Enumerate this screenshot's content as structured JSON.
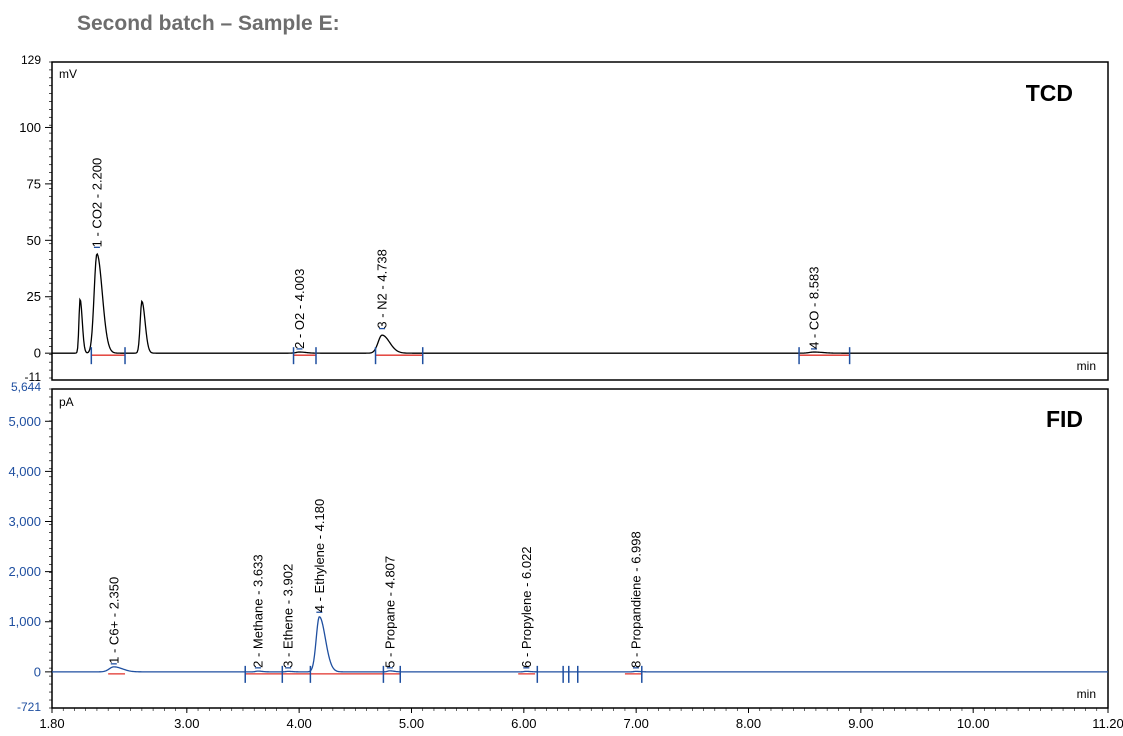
{
  "page": {
    "heading": "Second batch – Sample E:"
  },
  "colors": {
    "tcd_trace": "#000000",
    "fid_trace": "#1f4fa0",
    "baseline": "#e0302a",
    "marker": "#1f4fa0",
    "fid_axis_text": "#1f4fa0"
  },
  "chart_data": [
    {
      "type": "line",
      "detector": "TCD",
      "unit_label": "mV",
      "xlabel": "min",
      "xlim": [
        1.8,
        11.2
      ],
      "ylim": [
        -11,
        129
      ],
      "y_ticks": [
        0,
        25,
        50,
        75,
        100
      ],
      "y_tick_labels": [
        "0",
        "25",
        "50",
        "75",
        "100"
      ],
      "y_min_label": "-11",
      "y_max_label": "129",
      "grid": false,
      "peaks": [
        {
          "rt": 2.05,
          "height": 24,
          "width": 0.01
        },
        {
          "rt": 2.2,
          "height": 44,
          "width": 0.025
        },
        {
          "rt": 2.6,
          "height": 23,
          "width": 0.015
        },
        {
          "rt": 4.003,
          "height": 0.5,
          "width": 0.03
        },
        {
          "rt": 4.738,
          "height": 8,
          "width": 0.035
        },
        {
          "rt": 8.583,
          "height": 0.5,
          "width": 0.04
        }
      ],
      "annotations": [
        {
          "x": 2.2,
          "text": "1 - CO2 - 2.200",
          "y": 46
        },
        {
          "x": 4.003,
          "text": "2 - O2 - 4.003",
          "y": 1
        },
        {
          "x": 4.738,
          "text": "3 - N2 - 4.738",
          "y": 10
        },
        {
          "x": 8.583,
          "text": "4 - CO - 8.583",
          "y": 1
        }
      ],
      "baselines": [
        [
          2.15,
          2.45
        ],
        [
          3.95,
          4.15
        ],
        [
          4.68,
          5.1
        ],
        [
          8.45,
          8.9
        ]
      ],
      "markers": [
        2.15,
        2.45,
        3.95,
        4.15,
        4.68,
        5.1,
        8.45,
        8.9
      ]
    },
    {
      "type": "line",
      "detector": "FID",
      "unit_label": "pA",
      "xlabel": "min",
      "xlim": [
        1.8,
        11.2
      ],
      "ylim": [
        -721,
        5644
      ],
      "y_ticks": [
        0,
        1000,
        2000,
        3000,
        4000,
        5000
      ],
      "y_tick_labels": [
        "0",
        "1,000",
        "2,000",
        "3,000",
        "4,000",
        "5,000"
      ],
      "y_min_label": "-721",
      "y_max_label": "5,644",
      "x_ticks": [
        1.8,
        3.0,
        4.0,
        5.0,
        6.0,
        7.0,
        8.0,
        9.0,
        10.0,
        11.2
      ],
      "x_tick_labels": [
        "1.80",
        "3.00",
        "4.00",
        "5.00",
        "6.00",
        "7.00",
        "8.00",
        "9.00",
        "10.00",
        "11.20"
      ],
      "grid": false,
      "peaks": [
        {
          "rt": 2.35,
          "height": 100,
          "width": 0.04
        },
        {
          "rt": 3.633,
          "height": 15,
          "width": 0.02
        },
        {
          "rt": 3.902,
          "height": 10,
          "width": 0.02
        },
        {
          "rt": 4.18,
          "height": 1100,
          "width": 0.028
        },
        {
          "rt": 4.807,
          "height": 20,
          "width": 0.02
        },
        {
          "rt": 6.022,
          "height": 10,
          "width": 0.02
        },
        {
          "rt": 6.998,
          "height": 10,
          "width": 0.02
        }
      ],
      "annotations": [
        {
          "x": 2.35,
          "text": "1 - C6+ - 2.350",
          "y": 120
        },
        {
          "x": 3.633,
          "text": "2 - Methane - 3.633",
          "y": 40
        },
        {
          "x": 3.902,
          "text": "3 - Ethene - 3.902",
          "y": 40
        },
        {
          "x": 4.18,
          "text": "4 - Ethylene - 4.180",
          "y": 1150
        },
        {
          "x": 4.807,
          "text": "5 - Propane - 4.807",
          "y": 40
        },
        {
          "x": 6.022,
          "text": "6 - Propylene - 6.022",
          "y": 40
        },
        {
          "x": 6.998,
          "text": "8 - Propandiene - 6.998",
          "y": 40
        }
      ],
      "baselines": [
        [
          2.3,
          2.45
        ],
        [
          3.52,
          4.9
        ],
        [
          5.95,
          6.1
        ],
        [
          6.9,
          7.05
        ]
      ],
      "markers": [
        3.52,
        3.85,
        4.1,
        4.75,
        4.9,
        6.12,
        6.35,
        6.4,
        6.48,
        7.05
      ]
    }
  ]
}
